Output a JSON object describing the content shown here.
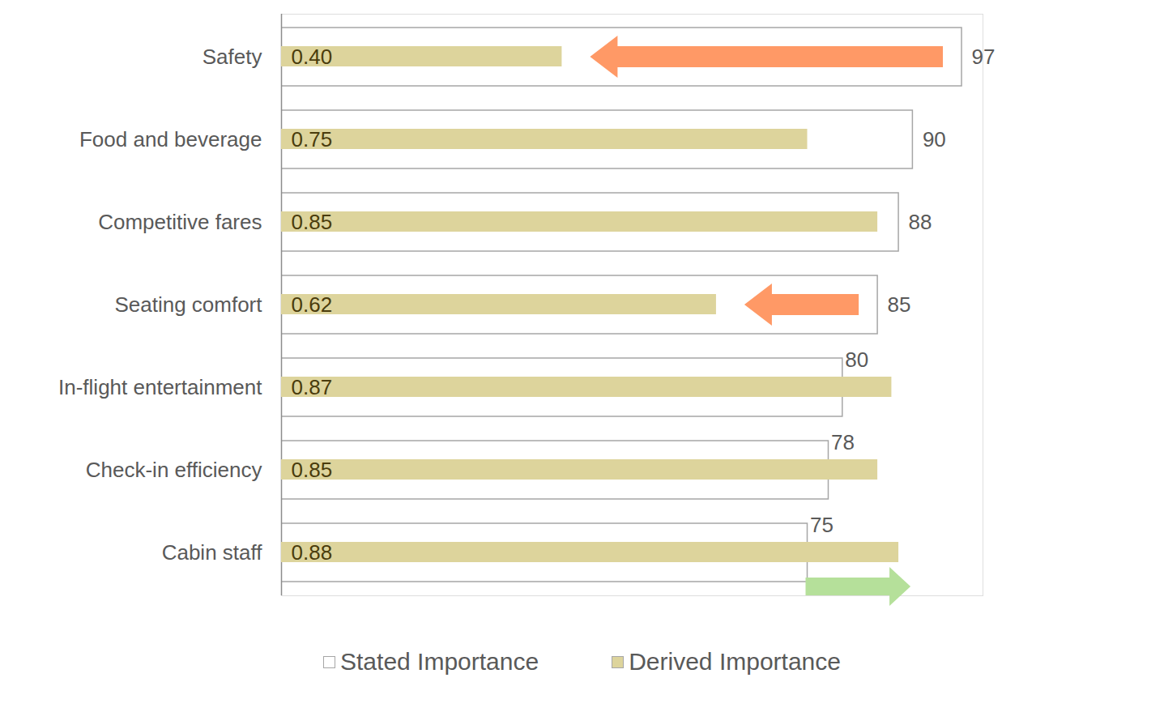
{
  "chart_data": {
    "type": "bar",
    "orientation": "horizontal",
    "categories": [
      "Safety",
      "Food and beverage",
      "Competitive fares",
      "Seating comfort",
      "In-flight entertainment",
      "Check-in efficiency",
      "Cabin staff"
    ],
    "series": [
      {
        "name": "Stated Importance",
        "color": "#ffffff",
        "values": [
          97,
          90,
          88,
          85,
          80,
          78,
          75
        ]
      },
      {
        "name": "Derived Importance",
        "color": "#ddd49c",
        "axis": "x2",
        "values": [
          0.4,
          0.75,
          0.85,
          0.62,
          0.87,
          0.85,
          0.88
        ],
        "value_labels": [
          "0.40",
          "0.75",
          "0.85",
          "0.62",
          "0.87",
          "0.85",
          "0.88"
        ]
      }
    ],
    "xlim": [
      0,
      100
    ],
    "xticks": [],
    "x2lim": [
      0,
      1
    ],
    "x2ticks": [],
    "tick_labels": "y",
    "data_labels": true,
    "legend": "bottom"
  }
}
